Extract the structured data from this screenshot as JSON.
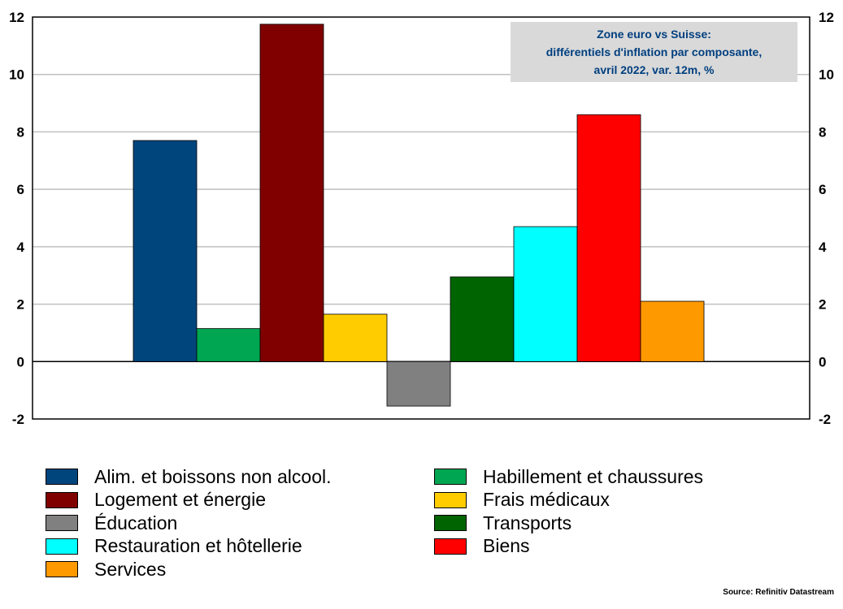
{
  "chart_data": {
    "type": "bar",
    "title": [
      "Zone euro vs Suisse:",
      "différentiels d'inflation par composante,",
      "avril 2022, var. 12m, %"
    ],
    "ylim": [
      -2,
      12
    ],
    "yticks": [
      12,
      10,
      8,
      6,
      4,
      2,
      0,
      -2
    ],
    "grid": true,
    "secondary_axis": true,
    "legend_position": "bottom",
    "series": [
      {
        "name": "Alim. et boissons non alcool.",
        "value": 7.7,
        "color": "#00457c"
      },
      {
        "name": "Habillement et chaussures",
        "value": 1.15,
        "color": "#00a651"
      },
      {
        "name": "Logement et énergie",
        "value": 11.75,
        "color": "#800000"
      },
      {
        "name": "Frais médicaux",
        "value": 1.65,
        "color": "#ffcc00"
      },
      {
        "name": "Éducation",
        "value": -1.55,
        "color": "#808080"
      },
      {
        "name": "Transports",
        "value": 2.95,
        "color": "#006400"
      },
      {
        "name": "Restauration et hôtellerie",
        "value": 4.7,
        "color": "#00ffff"
      },
      {
        "name": "Biens",
        "value": 8.6,
        "color": "#ff0000"
      },
      {
        "name": "Services",
        "value": 2.1,
        "color": "#ff9900"
      }
    ],
    "legend_order": [
      "Alim. et boissons non alcool.",
      "Habillement et chaussures",
      "Logement et énergie",
      "Frais médicaux",
      "Éducation",
      "Transports",
      "Restauration et hôtellerie",
      "Biens",
      "Services"
    ]
  },
  "source": "Source: Refinitiv Datastream"
}
